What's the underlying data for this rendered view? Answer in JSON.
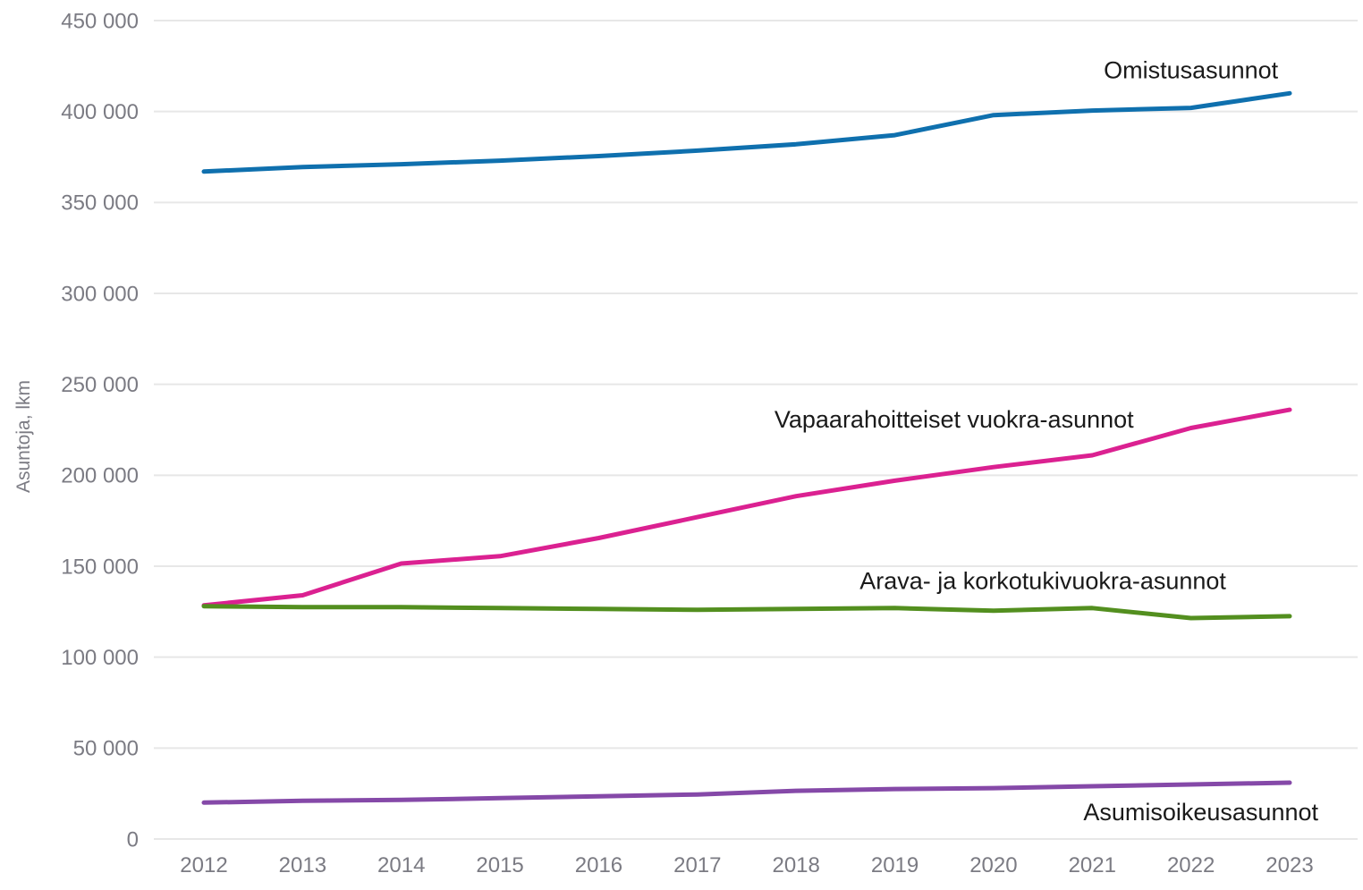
{
  "page": {
    "background_color": "#ffffff",
    "tick_label_color": "#7b7b83",
    "annotation_text_color": "#1a1a1a",
    "gridline_color": "#e7e7e7"
  },
  "chart_data": {
    "type": "line",
    "title": "",
    "xlabel": "",
    "ylabel": "Asuntoja, lkm",
    "ylim": [
      0,
      450000
    ],
    "grid": "horizontal-only",
    "legend_position": "inline-labels-next-to-lines",
    "x": [
      2012,
      2013,
      2014,
      2015,
      2016,
      2017,
      2018,
      2019,
      2020,
      2021,
      2022,
      2023
    ],
    "x_tick_labels": [
      "2012",
      "2013",
      "2014",
      "2015",
      "2016",
      "2017",
      "2018",
      "2019",
      "2020",
      "2021",
      "2022",
      "2023"
    ],
    "y_ticks": [
      0,
      50000,
      100000,
      150000,
      200000,
      250000,
      300000,
      350000,
      400000,
      450000
    ],
    "y_tick_labels": [
      "0",
      "50 000",
      "100 000",
      "150 000",
      "200 000",
      "250 000",
      "300 000",
      "350 000",
      "400 000",
      "450 000"
    ],
    "series": [
      {
        "name": "Omistusasunnot",
        "color": "#0f70ae",
        "values": [
          367000,
          369500,
          371000,
          373000,
          375500,
          378500,
          382000,
          387000,
          398000,
          400500,
          402000,
          410000
        ],
        "label_anchor": {
          "x": 2022.0,
          "y": 423000
        }
      },
      {
        "name": "Vapaarahoitteiset vuokra-asunnot",
        "color": "#db2191",
        "values": [
          128500,
          134000,
          151500,
          155500,
          165500,
          177000,
          188500,
          197000,
          204500,
          211000,
          226000,
          236000
        ],
        "label_anchor": {
          "x": 2019.6,
          "y": 231000
        }
      },
      {
        "name": "Arava- ja korkotukivuokra-asunnot",
        "color": "#538f1f",
        "values": [
          128000,
          127500,
          127500,
          127000,
          126500,
          126000,
          126500,
          127000,
          125500,
          127000,
          121500,
          122500
        ],
        "label_anchor": {
          "x": 2020.5,
          "y": 142000
        }
      },
      {
        "name": "Asumisoikeusasunnot",
        "color": "#8549a8",
        "values": [
          20000,
          21000,
          21500,
          22500,
          23500,
          24500,
          26500,
          27500,
          28000,
          29000,
          30000,
          31000
        ],
        "label_anchor": {
          "x": 2022.1,
          "y": 15000
        }
      }
    ]
  }
}
